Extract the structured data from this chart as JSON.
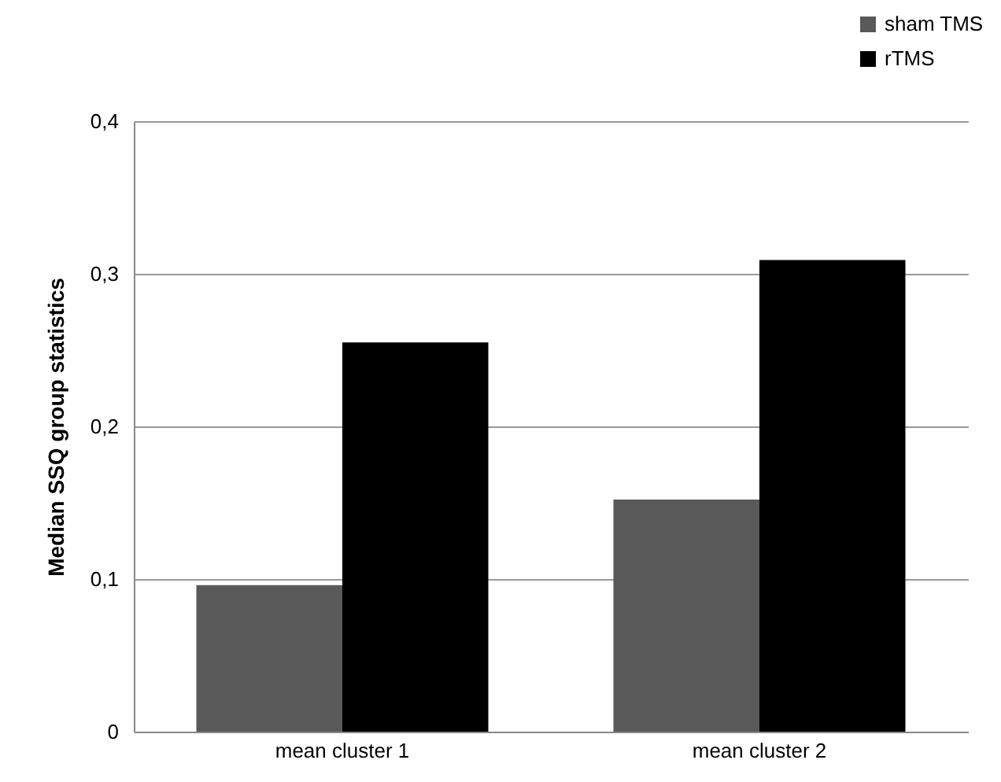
{
  "chart_data": {
    "type": "bar",
    "ylabel": "Median SSQ group statistics",
    "categories": [
      "mean cluster 1",
      "mean cluster 2"
    ],
    "series": [
      {
        "name": "sham TMS",
        "color": "#595959",
        "values": [
          0.096,
          0.152
        ]
      },
      {
        "name": "rTMS",
        "color": "#000000",
        "values": [
          0.255,
          0.309
        ]
      }
    ],
    "ylim": [
      0,
      0.4
    ],
    "yticks": [
      0,
      {
        "value": 0.1,
        "label": "0,1"
      },
      {
        "value": 0.2,
        "label": "0,2"
      },
      {
        "value": 0.3,
        "label": "0,3"
      },
      {
        "value": 0.4,
        "label": "0,4"
      }
    ],
    "grid": "y",
    "legend": "top right"
  }
}
